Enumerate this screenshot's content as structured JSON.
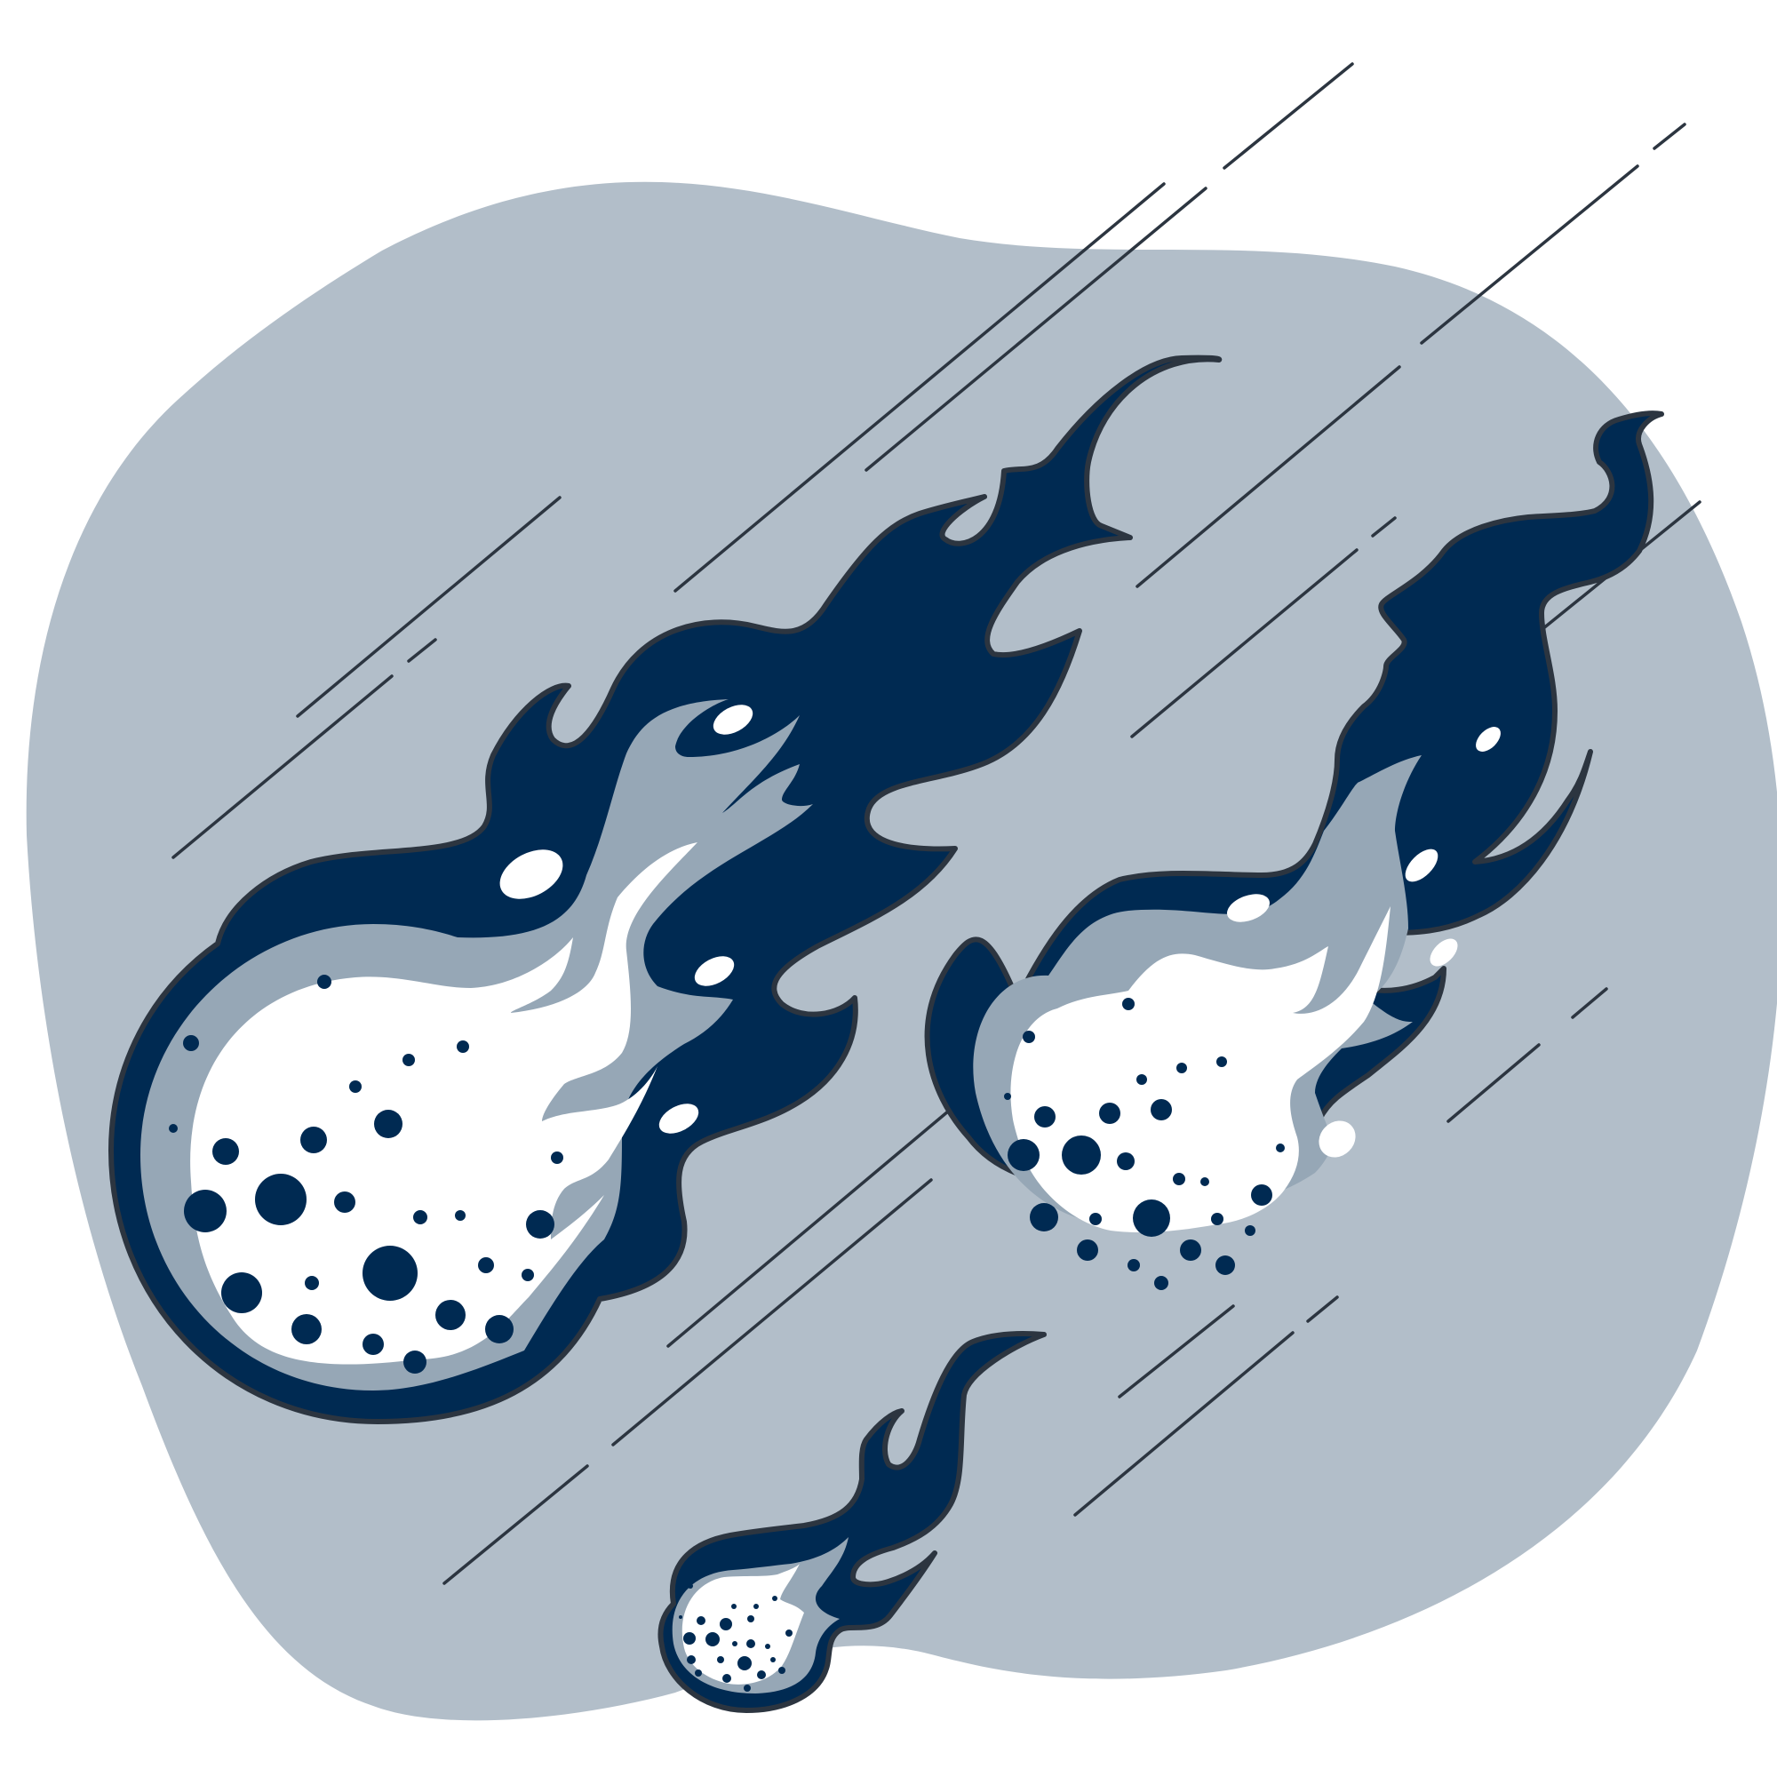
{
  "colors": {
    "background": "#ffffff",
    "blob": "#b2bec9",
    "flame_dark": "#002a52",
    "flame_light": "#96a7b6",
    "core": "#ffffff",
    "crater": "#002a52",
    "outline": "#2c3540",
    "streak": "#2c3540"
  },
  "scene": {
    "meteors": [
      {
        "name": "large-meteor"
      },
      {
        "name": "medium-meteor"
      },
      {
        "name": "small-meteor"
      }
    ]
  }
}
